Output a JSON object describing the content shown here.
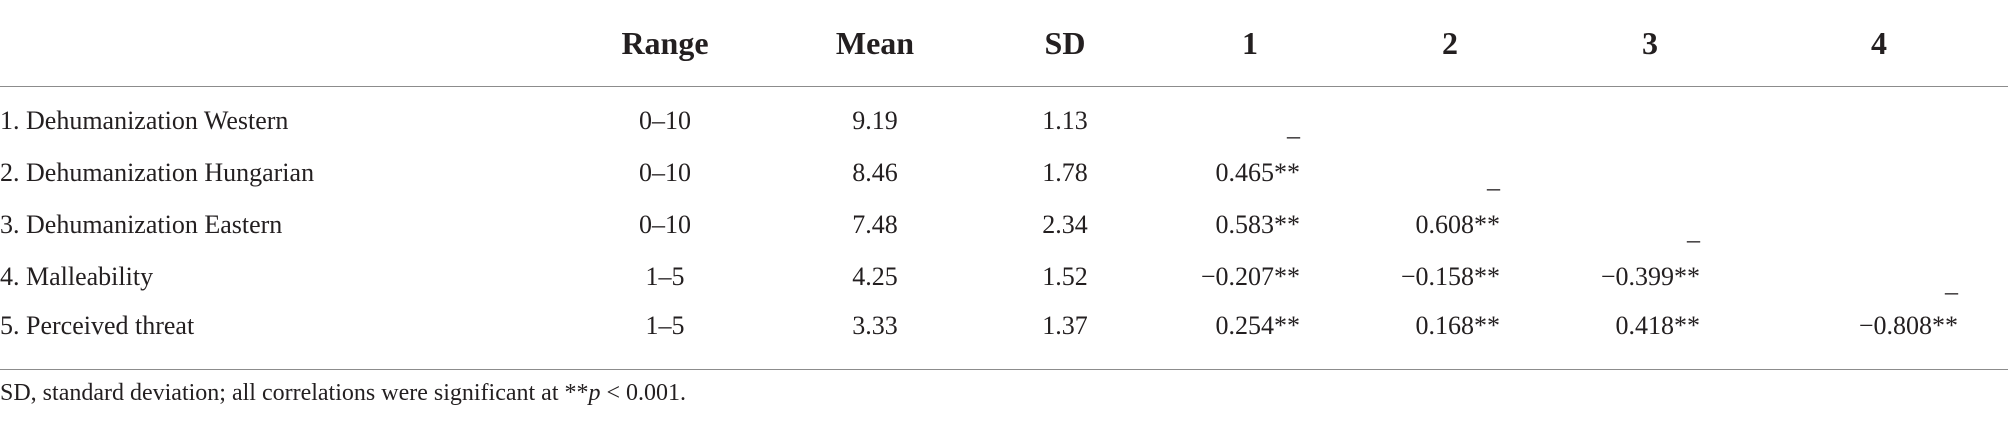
{
  "table": {
    "headers": [
      "",
      "Range",
      "Mean",
      "SD",
      "1",
      "2",
      "3",
      "4"
    ],
    "rows": [
      {
        "label": "1. Dehumanization Western",
        "range": "0–10",
        "mean": "9.19",
        "sd": "1.13",
        "c1": "_",
        "c2": "",
        "c3": "",
        "c4": ""
      },
      {
        "label": "2. Dehumanization Hungarian",
        "range": "0–10",
        "mean": "8.46",
        "sd": "1.78",
        "c1": "0.465**",
        "c2": "_",
        "c3": "",
        "c4": ""
      },
      {
        "label": "3. Dehumanization Eastern",
        "range": "0–10",
        "mean": "7.48",
        "sd": "2.34",
        "c1": "0.583**",
        "c2": "0.608**",
        "c3": "_",
        "c4": ""
      },
      {
        "label": "4. Malleability",
        "range": "1–5",
        "mean": "4.25",
        "sd": "1.52",
        "c1": "−0.207**",
        "c2": "−0.158**",
        "c3": "−0.399**",
        "c4": "_"
      },
      {
        "label": "5. Perceived threat",
        "range": "1–5",
        "mean": "3.33",
        "sd": "1.37",
        "c1": "0.254**",
        "c2": "0.168**",
        "c3": "0.418**",
        "c4": "−0.808**"
      }
    ]
  },
  "footnote": {
    "prefix": "SD, standard deviation; all correlations were significant at **",
    "p": "p",
    "suffix": " < 0.001."
  }
}
